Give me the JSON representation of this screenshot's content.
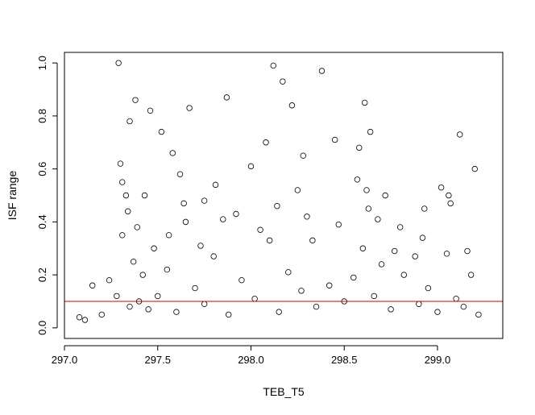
{
  "chart_data": {
    "type": "scatter",
    "title": "",
    "xlabel": "TEB_T5",
    "ylabel": "ISF range",
    "xlim": [
      297.0,
      299.35
    ],
    "ylim": [
      -0.04,
      1.04
    ],
    "x_ticks": [
      "297.0",
      "297.5",
      "298.0",
      "298.5",
      "299.0"
    ],
    "y_ticks": [
      "0.0",
      "0.2",
      "0.4",
      "0.6",
      "0.8",
      "1.0"
    ],
    "x_tick_values": [
      297.0,
      297.5,
      298.0,
      298.5,
      299.0
    ],
    "y_tick_values": [
      0.0,
      0.2,
      0.4,
      0.6,
      0.8,
      1.0
    ],
    "hline": {
      "y": 0.1,
      "color": "#cc0000"
    },
    "marker": "open-circle",
    "grid": false,
    "legend": "none",
    "series": [
      {
        "x": [
          297.08,
          297.11,
          297.15,
          297.2,
          297.24,
          297.28,
          297.31,
          297.33,
          297.35,
          297.37,
          297.4,
          297.42,
          297.45,
          297.48,
          297.5,
          297.55,
          297.6,
          297.65,
          297.7,
          297.75,
          297.8,
          297.88,
          297.95,
          298.02,
          298.1,
          298.15,
          298.2,
          298.27,
          298.3,
          298.35,
          298.42,
          298.5,
          298.55,
          298.6,
          298.63,
          298.66,
          298.7,
          298.75,
          298.82,
          298.9,
          298.95,
          299.0,
          299.05,
          299.1,
          299.14,
          299.18,
          299.22,
          297.29,
          297.3,
          297.35,
          297.38,
          297.46,
          297.52,
          297.58,
          297.62,
          297.67,
          297.75,
          297.81,
          297.87,
          297.92,
          298.0,
          298.08,
          298.12,
          298.17,
          298.22,
          298.28,
          298.38,
          298.45,
          298.58,
          298.61,
          298.64,
          298.72,
          298.8,
          298.88,
          298.93,
          299.02,
          299.07,
          299.12,
          299.2,
          297.31,
          297.34,
          297.39,
          297.43,
          297.56,
          297.64,
          297.73,
          297.85,
          298.05,
          298.14,
          298.25,
          298.33,
          298.47,
          298.57,
          298.62,
          298.68,
          298.77,
          298.92,
          299.06,
          299.16
        ],
        "y": [
          0.04,
          0.03,
          0.16,
          0.05,
          0.18,
          0.12,
          0.35,
          0.5,
          0.08,
          0.25,
          0.1,
          0.2,
          0.07,
          0.3,
          0.12,
          0.22,
          0.06,
          0.4,
          0.15,
          0.09,
          0.27,
          0.05,
          0.18,
          0.11,
          0.33,
          0.06,
          0.21,
          0.14,
          0.42,
          0.08,
          0.16,
          0.1,
          0.19,
          0.3,
          0.45,
          0.12,
          0.24,
          0.07,
          0.2,
          0.09,
          0.15,
          0.06,
          0.28,
          0.11,
          0.08,
          0.2,
          0.05,
          1.0,
          0.62,
          0.78,
          0.86,
          0.82,
          0.74,
          0.66,
          0.58,
          0.83,
          0.48,
          0.54,
          0.87,
          0.43,
          0.61,
          0.7,
          0.99,
          0.93,
          0.84,
          0.65,
          0.97,
          0.71,
          0.68,
          0.85,
          0.74,
          0.5,
          0.38,
          0.27,
          0.45,
          0.53,
          0.47,
          0.73,
          0.6,
          0.55,
          0.44,
          0.38,
          0.5,
          0.35,
          0.47,
          0.31,
          0.41,
          0.37,
          0.46,
          0.52,
          0.33,
          0.39,
          0.56,
          0.52,
          0.41,
          0.29,
          0.34,
          0.5,
          0.29
        ]
      }
    ]
  }
}
